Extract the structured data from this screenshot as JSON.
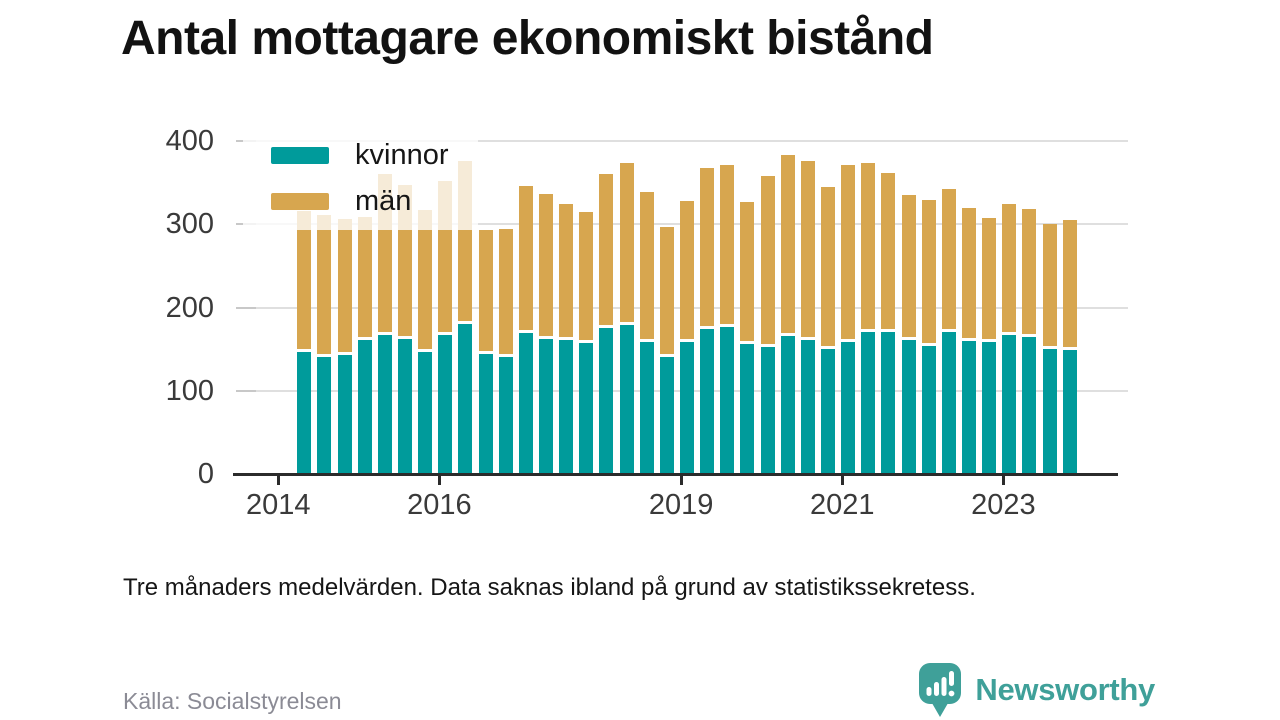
{
  "title": "Antal mottagare ekonomiskt bistånd",
  "caption": "Tre månaders medelvärden. Data saknas ibland på grund av statistikssekretess.",
  "source": "Källa: Socialstyrelsen",
  "brand": {
    "name": "Newsworthy"
  },
  "colors": {
    "kvinnor": "#009b9b",
    "man": "#d7a64f",
    "brand_teal": "#3fa099",
    "grid": "#dfdfdf",
    "axis": "#2b2b2b",
    "text_dark": "#161616",
    "text_gray": "#8b8b95"
  },
  "legend": {
    "items": [
      {
        "label": "kvinnor",
        "color_key": "kvinnor"
      },
      {
        "label": "män",
        "color_key": "man"
      }
    ]
  },
  "chart_data": {
    "type": "bar",
    "stacked": true,
    "title": "Antal mottagare ekonomiskt bistånd",
    "xlabel": "",
    "ylabel": "",
    "ylim": [
      0,
      400
    ],
    "yticks": [
      0,
      100,
      200,
      300,
      400
    ],
    "xticks": [
      2014,
      2016,
      2019,
      2021,
      2023
    ],
    "grid": true,
    "legend_position": "top-left",
    "x": [
      "2014 Q2",
      "2014 Q3",
      "2014 Q4",
      "2015 Q1",
      "2015 Q2",
      "2015 Q3",
      "2015 Q4",
      "2016 Q1",
      "2016 Q2",
      "2016 Q3",
      "2016 Q4",
      "2017 Q1",
      "2017 Q2",
      "2017 Q3",
      "2017 Q4",
      "2018 Q1",
      "2018 Q2",
      "2018 Q3",
      "2018 Q4",
      "2019 Q1",
      "2019 Q2",
      "2019 Q3",
      "2019 Q4",
      "2020 Q1",
      "2020 Q2",
      "2020 Q3",
      "2020 Q4",
      "2021 Q1",
      "2021 Q2",
      "2021 Q3",
      "2021 Q4",
      "2022 Q1",
      "2022 Q2",
      "2022 Q3",
      "2022 Q4",
      "2023 Q1",
      "2023 Q2",
      "2023 Q3",
      "2023 Q4"
    ],
    "series": [
      {
        "name": "kvinnor",
        "values": [
          147,
          141,
          143,
          161,
          167,
          162,
          147,
          167,
          180,
          144,
          141,
          169,
          162,
          161,
          157,
          175,
          179,
          159,
          140,
          159,
          174,
          176,
          156,
          152,
          166,
          161,
          150,
          159,
          170,
          171,
          161,
          154,
          170,
          160,
          158,
          167,
          164,
          150,
          149
        ]
      },
      {
        "name": "män",
        "values": [
          165,
          166,
          160,
          144,
          190,
          182,
          166,
          181,
          192,
          145,
          150,
          173,
          171,
          160,
          154,
          182,
          191,
          176,
          153,
          165,
          190,
          191,
          167,
          202,
          213,
          211,
          191,
          208,
          200,
          187,
          170,
          172,
          169,
          156,
          146,
          154,
          151,
          147,
          153
        ]
      }
    ]
  }
}
